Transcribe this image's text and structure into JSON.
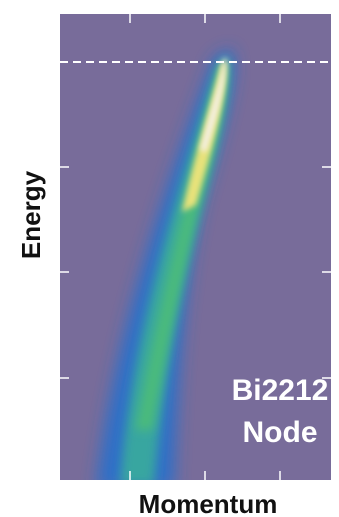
{
  "chart_data": {
    "type": "heatmap",
    "ylabel": "Energy",
    "xlabel": "Momentum",
    "annotation": [
      "Bi2212",
      "Node"
    ]
  }
}
